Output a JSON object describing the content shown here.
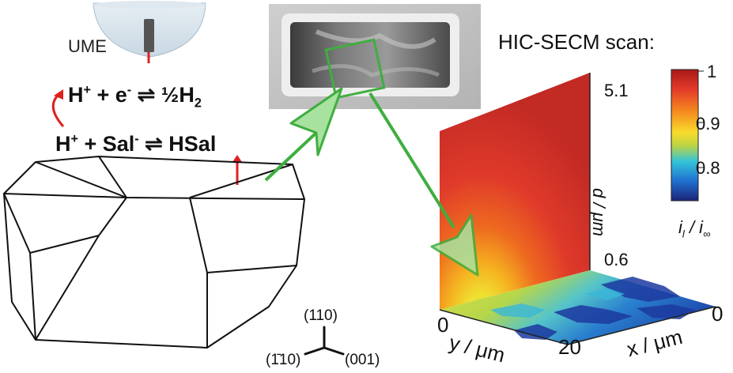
{
  "ume_label": "UME",
  "equation1": {
    "lhs_a": "H",
    "sup_a": "+",
    "plus": " + e",
    "sup_e": "-",
    "arrow": " ⇌ ",
    "rhs": "½H",
    "sub_h": "2"
  },
  "equation2": {
    "lhs_a": "H",
    "sup_a": "+",
    "plus": "  +  Sal",
    "sup_s": "-",
    "arrow": " ⇌ ",
    "rhs": "HSal"
  },
  "scan_title": "HIC-SECM scan:",
  "colorbar": {
    "ticks": [
      "1",
      "0.9",
      "0.8"
    ],
    "label_main": "i",
    "label_sub1": "l",
    "label_slash": " / i",
    "label_sub2": "∞",
    "colors": [
      "#b71c1c",
      "#e53935",
      "#fb8c00",
      "#fdd835",
      "#c0ca33",
      "#26c6da",
      "#1e88e5",
      "#1a237e"
    ]
  },
  "axes": {
    "d_top": "5.1",
    "d_bottom": "0.6",
    "d_label": "d / μm",
    "y_zero": "0",
    "y_label": "y / μm",
    "y_max": "20",
    "x_label": "x / μm",
    "x_zero": "0"
  },
  "miller": {
    "up": "(110)",
    "left": "(1̄10)",
    "right": "(001)"
  },
  "colors": {
    "arrow": "#3fae3f",
    "arrow_fill": "#a8e2a0",
    "tip": "#e02020"
  }
}
